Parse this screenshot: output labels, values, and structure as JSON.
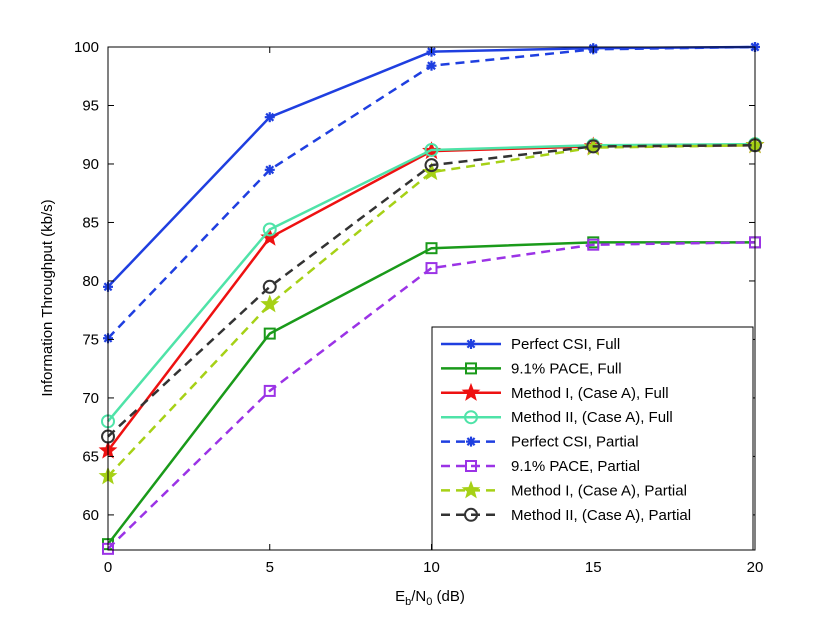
{
  "chart_data": {
    "type": "line",
    "xlabel_main": "E",
    "xlabel_sub1": "b",
    "xlabel_mid": "/N",
    "xlabel_sub2": "0",
    "xlabel_tail": " (dB)",
    "ylabel": "Information Throughput (kb/s)",
    "xlim": [
      0,
      20
    ],
    "ylim": [
      57,
      100
    ],
    "xticks": [
      0,
      5,
      10,
      15,
      20
    ],
    "yticks": [
      60,
      65,
      70,
      75,
      80,
      85,
      90,
      95,
      100
    ],
    "grid": false,
    "legend_position": "bottom-right",
    "x": [
      0,
      5,
      10,
      15,
      20
    ],
    "series": [
      {
        "name": "Perfect CSI, Full",
        "color": "#1f3fe0",
        "dash": "solid",
        "marker": "asterisk",
        "values": [
          79.5,
          94.0,
          99.6,
          99.9,
          100.0
        ]
      },
      {
        "name": "9.1% PACE, Full",
        "color": "#1a9a1a",
        "dash": "solid",
        "marker": "square",
        "values": [
          57.5,
          75.5,
          82.8,
          83.3,
          83.3
        ]
      },
      {
        "name": "Method I, (Case A), Full",
        "color": "#ee1111",
        "dash": "solid",
        "marker": "star",
        "values": [
          65.5,
          83.7,
          91.1,
          91.5,
          91.6
        ]
      },
      {
        "name": "Method II, (Case A), Full",
        "color": "#4fe3a8",
        "dash": "solid",
        "marker": "circle",
        "values": [
          68.0,
          84.4,
          91.2,
          91.6,
          91.7
        ]
      },
      {
        "name": "Perfect CSI, Partial",
        "color": "#1f3fe0",
        "dash": "dashed",
        "marker": "asterisk",
        "values": [
          75.1,
          89.5,
          98.4,
          99.8,
          100.0
        ]
      },
      {
        "name": "9.1% PACE, Partial",
        "color": "#9b33e6",
        "dash": "dashed",
        "marker": "square",
        "values": [
          57.1,
          70.6,
          81.1,
          83.1,
          83.3
        ]
      },
      {
        "name": "Method I, (Case A), Partial",
        "color": "#a6d116",
        "dash": "dashed",
        "marker": "star",
        "values": [
          63.3,
          78.0,
          89.3,
          91.4,
          91.6
        ]
      },
      {
        "name": "Method II, (Case A), Partial",
        "color": "#333333",
        "dash": "dashed",
        "marker": "circle",
        "values": [
          66.7,
          79.5,
          89.9,
          91.5,
          91.6
        ]
      }
    ]
  }
}
